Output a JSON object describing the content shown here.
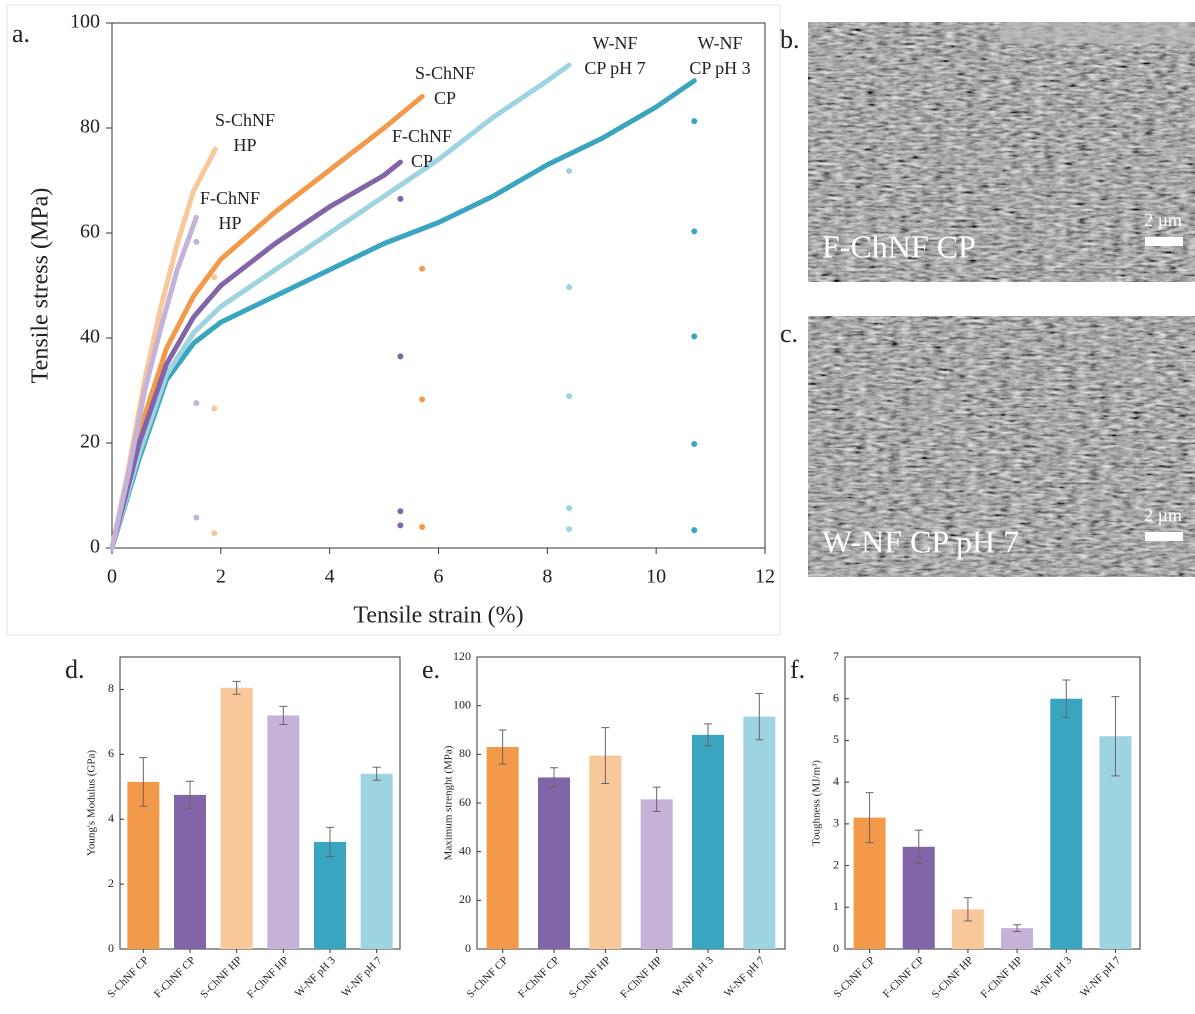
{
  "chart_data": [
    {
      "type": "line",
      "panel_label": "a.",
      "x_label": "Tensile strain (%)",
      "y_label": "Tensile stress (MPa)",
      "xlim": [
        0,
        12
      ],
      "xticks": [
        0,
        2,
        4,
        6,
        8,
        10,
        12
      ],
      "ylim": [
        0,
        100
      ],
      "yticks": [
        0,
        20,
        40,
        60,
        80,
        100
      ],
      "series": [
        {
          "name_lines": [
            "S-ChNF",
            "HP"
          ],
          "color": "#f8c89a",
          "x": [
            0,
            0.3,
            0.6,
            0.9,
            1.2,
            1.5,
            1.9
          ],
          "values": [
            0,
            15,
            32,
            46,
            58,
            68,
            76
          ],
          "marker_x": [
            1.88,
            1.88,
            1.88
          ],
          "marker_y": [
            2.8,
            26.6,
            51.6
          ]
        },
        {
          "name_lines": [
            "F-ChNF",
            "HP"
          ],
          "color": "#c4b2d8",
          "x": [
            0,
            0.3,
            0.6,
            0.9,
            1.2,
            1.55
          ],
          "values": [
            0,
            14,
            30,
            42,
            53,
            63
          ],
          "marker_x": [
            1.55,
            1.55,
            1.55
          ],
          "marker_y": [
            5.8,
            27.6,
            58.3
          ]
        },
        {
          "name_lines": [
            "S-ChNF",
            "CP"
          ],
          "color": "#f39a4a",
          "x": [
            0,
            0.5,
            1,
            1.5,
            2,
            3,
            4,
            5,
            5.7
          ],
          "values": [
            0,
            22,
            38,
            48,
            55,
            64,
            72,
            80,
            86
          ],
          "marker_x": [
            5.7,
            5.7,
            5.7
          ],
          "marker_y": [
            4,
            28.3,
            53.2
          ]
        },
        {
          "name_lines": [
            "F-ChNF",
            "CP"
          ],
          "color": "#8165a8",
          "x": [
            0,
            0.5,
            1,
            1.5,
            2,
            3,
            4,
            5,
            5.3
          ],
          "values": [
            0,
            20,
            35,
            44,
            50,
            58,
            65,
            71,
            73.5
          ],
          "marker_x": [
            5.3,
            5.3,
            5.3,
            5.3
          ],
          "marker_y": [
            4.3,
            7,
            36.5,
            66.5
          ]
        },
        {
          "name_lines": [
            "W-NF",
            "CP pH 7"
          ],
          "color": "#9ed3e1",
          "x": [
            0,
            0.5,
            1,
            1.5,
            2,
            3,
            4,
            5,
            6,
            7,
            8,
            8.4
          ],
          "values": [
            0,
            18,
            33,
            41,
            46,
            53,
            60,
            67,
            74,
            82,
            89,
            92
          ],
          "marker_x": [
            8.4,
            8.4,
            8.4,
            8.4,
            8.4
          ],
          "marker_y": [
            3.6,
            7.6,
            28.9,
            49.7,
            71.8
          ]
        },
        {
          "name_lines": [
            "W-NF",
            "CP pH 3"
          ],
          "color": "#3aa5bf",
          "x": [
            0,
            0.5,
            1,
            1.5,
            2,
            3,
            4,
            5,
            6,
            7,
            8,
            9,
            10,
            10.7
          ],
          "values": [
            0,
            17,
            32,
            39,
            43,
            48,
            53,
            58,
            62,
            67,
            73,
            78,
            84,
            89
          ],
          "marker_x": [
            10.7,
            10.7,
            10.7,
            10.7,
            10.7
          ],
          "marker_y": [
            3.4,
            19.8,
            40.3,
            60.3,
            81.3
          ]
        }
      ]
    },
    {
      "type": "image",
      "panel_label": "b.",
      "caption": "F-ChNF CP",
      "scale_label": "2 µm"
    },
    {
      "type": "image",
      "panel_label": "c.",
      "caption": "W-NF CP pH 7",
      "scale_label": "2 µm"
    },
    {
      "type": "bar",
      "panel_label": "d.",
      "y_label": "Young's Modulus (GPa)",
      "ylim": [
        0,
        9
      ],
      "yticks": [
        0,
        2,
        4,
        6,
        8
      ],
      "categories": [
        "S-ChNF CP",
        "F-ChNF CP",
        "S-ChNF HP",
        "F-ChNF HP",
        "W-NF pH 3",
        "W-NF pH 7"
      ],
      "colors": [
        "#f39a4a",
        "#8165a8",
        "#f8c89a",
        "#c4b2d8",
        "#3aa5bf",
        "#9ed3e1"
      ],
      "values": [
        5.15,
        4.75,
        8.05,
        7.2,
        3.3,
        5.4
      ],
      "errors": [
        0.75,
        0.42,
        0.2,
        0.28,
        0.45,
        0.2
      ]
    },
    {
      "type": "bar",
      "panel_label": "e.",
      "y_label": "Maximum strenght (MPa)",
      "ylim": [
        0,
        120
      ],
      "yticks": [
        0,
        20,
        40,
        60,
        80,
        100,
        120
      ],
      "categories": [
        "S-ChNF CP",
        "F-ChNF CP",
        "S-ChNF HP",
        "F-ChNF HP",
        "W-NF pH 3",
        "W-NF pH 7"
      ],
      "colors": [
        "#f39a4a",
        "#8165a8",
        "#f8c89a",
        "#c4b2d8",
        "#3aa5bf",
        "#9ed3e1"
      ],
      "values": [
        83,
        70.5,
        79.5,
        61.5,
        88,
        95.5
      ],
      "errors": [
        7,
        4,
        11.5,
        5,
        4.5,
        9.5
      ]
    },
    {
      "type": "bar",
      "panel_label": "f.",
      "y_label": "Toughness (MJ/m³)",
      "ylim": [
        0,
        7
      ],
      "yticks": [
        0,
        1,
        2,
        3,
        4,
        5,
        6,
        7
      ],
      "categories": [
        "S-ChNF CP",
        "F-ChNF CP",
        "S-ChNF HP",
        "F-ChNF HP",
        "W-NF pH 3",
        "W-NF pH 7"
      ],
      "colors": [
        "#f39a4a",
        "#8165a8",
        "#f8c89a",
        "#c4b2d8",
        "#3aa5bf",
        "#9ed3e1"
      ],
      "values": [
        3.15,
        2.45,
        0.95,
        0.5,
        6.0,
        5.1
      ],
      "errors": [
        0.6,
        0.4,
        0.28,
        0.08,
        0.45,
        0.95
      ]
    }
  ]
}
